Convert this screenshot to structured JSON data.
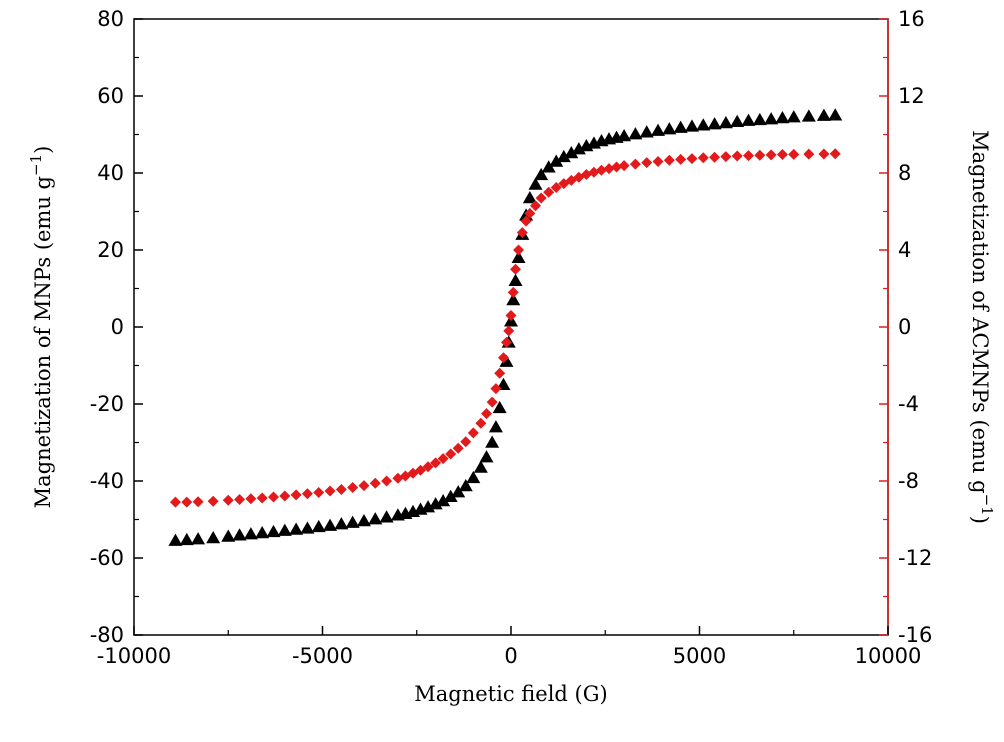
{
  "chart_data": {
    "type": "scatter",
    "xlabel": "Magnetic field (G)",
    "ylabel_left": "Magnetization of MNPs (emu g",
    "ylabel_right": "Magnetization of ACMNPs (emu g",
    "ylabel_superscript": "−1",
    "ylabel_close": ")",
    "xlim": [
      -10000,
      10000
    ],
    "ylim_left": [
      -80,
      80
    ],
    "ylim_right": [
      -16,
      16
    ],
    "xticks": [
      -10000,
      -5000,
      0,
      5000,
      10000
    ],
    "xtick_labels": [
      "-10000",
      "-5000",
      "0",
      "5000",
      "10000"
    ],
    "yticks_left": [
      -80,
      -60,
      -40,
      -20,
      0,
      20,
      40,
      60,
      80
    ],
    "ytick_labels_left": [
      "-80",
      "-60",
      "-40",
      "-20",
      "0",
      "20",
      "40",
      "60",
      "80"
    ],
    "yticks_right": [
      -16,
      -12,
      -8,
      -4,
      0,
      4,
      8,
      12,
      16
    ],
    "ytick_labels_right": [
      "-16",
      "-12",
      "-8",
      "-4",
      "0",
      "4",
      "8",
      "12",
      "16"
    ],
    "grid": false,
    "colors": {
      "axis_left": "#000000",
      "axis_right": "#e31a1c",
      "series_mnps": "#000000",
      "series_acmnps": "#e31a1c"
    },
    "series": [
      {
        "axis": "left",
        "marker": "triangle",
        "color": "#000000",
        "x": [
          -8900,
          -8600,
          -8300,
          -7900,
          -7500,
          -7200,
          -6900,
          -6600,
          -6300,
          -6000,
          -5700,
          -5400,
          -5100,
          -4800,
          -4500,
          -4200,
          -3900,
          -3600,
          -3300,
          -3000,
          -2800,
          -2600,
          -2400,
          -2200,
          -2000,
          -1800,
          -1600,
          -1400,
          -1200,
          -1000,
          -800,
          -650,
          -500,
          -400,
          -300,
          -200,
          -120,
          -60,
          0,
          60,
          120,
          200,
          300,
          400,
          500,
          650,
          800,
          1000,
          1200,
          1400,
          1600,
          1800,
          2000,
          2200,
          2400,
          2600,
          2800,
          3000,
          3300,
          3600,
          3900,
          4200,
          4500,
          4800,
          5100,
          5400,
          5700,
          6000,
          6300,
          6600,
          6900,
          7200,
          7500,
          7900,
          8300,
          8600
        ],
        "y": [
          -55.5,
          -55.3,
          -55.1,
          -54.8,
          -54.4,
          -54.1,
          -53.8,
          -53.5,
          -53.2,
          -52.9,
          -52.6,
          -52.3,
          -51.9,
          -51.6,
          -51.2,
          -50.8,
          -50.4,
          -49.9,
          -49.4,
          -48.9,
          -48.5,
          -48.0,
          -47.4,
          -46.8,
          -46.0,
          -45.2,
          -44.1,
          -42.9,
          -41.3,
          -39.2,
          -36.5,
          -33.8,
          -30.0,
          -26.0,
          -21.0,
          -15.0,
          -9.0,
          -4.0,
          1.5,
          7.0,
          12.0,
          18.0,
          24.0,
          29.0,
          33.5,
          37.0,
          39.5,
          41.5,
          43.0,
          44.2,
          45.2,
          46.2,
          47.0,
          47.7,
          48.3,
          48.8,
          49.2,
          49.6,
          50.1,
          50.6,
          51.0,
          51.4,
          51.8,
          52.1,
          52.4,
          52.7,
          53.0,
          53.3,
          53.6,
          53.8,
          54.0,
          54.3,
          54.5,
          54.7,
          54.9,
          55.0
        ]
      },
      {
        "axis": "right",
        "marker": "diamond",
        "color": "#e31a1c",
        "x": [
          -8900,
          -8600,
          -8300,
          -7900,
          -7500,
          -7200,
          -6900,
          -6600,
          -6300,
          -6000,
          -5700,
          -5400,
          -5100,
          -4800,
          -4500,
          -4200,
          -3900,
          -3600,
          -3300,
          -3000,
          -2800,
          -2600,
          -2400,
          -2200,
          -2000,
          -1800,
          -1600,
          -1400,
          -1200,
          -1000,
          -800,
          -650,
          -500,
          -400,
          -300,
          -200,
          -120,
          -60,
          0,
          60,
          120,
          200,
          300,
          400,
          500,
          650,
          800,
          1000,
          1200,
          1400,
          1600,
          1800,
          2000,
          2200,
          2400,
          2600,
          2800,
          3000,
          3300,
          3600,
          3900,
          4200,
          4500,
          4800,
          5100,
          5400,
          5700,
          6000,
          6300,
          6600,
          6900,
          7200,
          7500,
          7900,
          8300,
          8600
        ],
        "y": [
          -9.1,
          -9.1,
          -9.08,
          -9.05,
          -9.0,
          -8.96,
          -8.92,
          -8.88,
          -8.83,
          -8.78,
          -8.72,
          -8.66,
          -8.6,
          -8.52,
          -8.44,
          -8.34,
          -8.24,
          -8.12,
          -8.0,
          -7.86,
          -7.74,
          -7.6,
          -7.44,
          -7.26,
          -7.06,
          -6.84,
          -6.6,
          -6.3,
          -5.96,
          -5.5,
          -5.0,
          -4.5,
          -3.9,
          -3.2,
          -2.4,
          -1.6,
          -0.8,
          -0.2,
          0.6,
          1.8,
          3.0,
          4.0,
          4.9,
          5.5,
          5.9,
          6.3,
          6.7,
          7.0,
          7.25,
          7.45,
          7.62,
          7.78,
          7.92,
          8.04,
          8.14,
          8.23,
          8.31,
          8.38,
          8.46,
          8.54,
          8.6,
          8.66,
          8.71,
          8.75,
          8.79,
          8.82,
          8.85,
          8.88,
          8.9,
          8.92,
          8.94,
          8.96,
          8.97,
          8.98,
          8.99,
          9.0
        ]
      }
    ]
  }
}
